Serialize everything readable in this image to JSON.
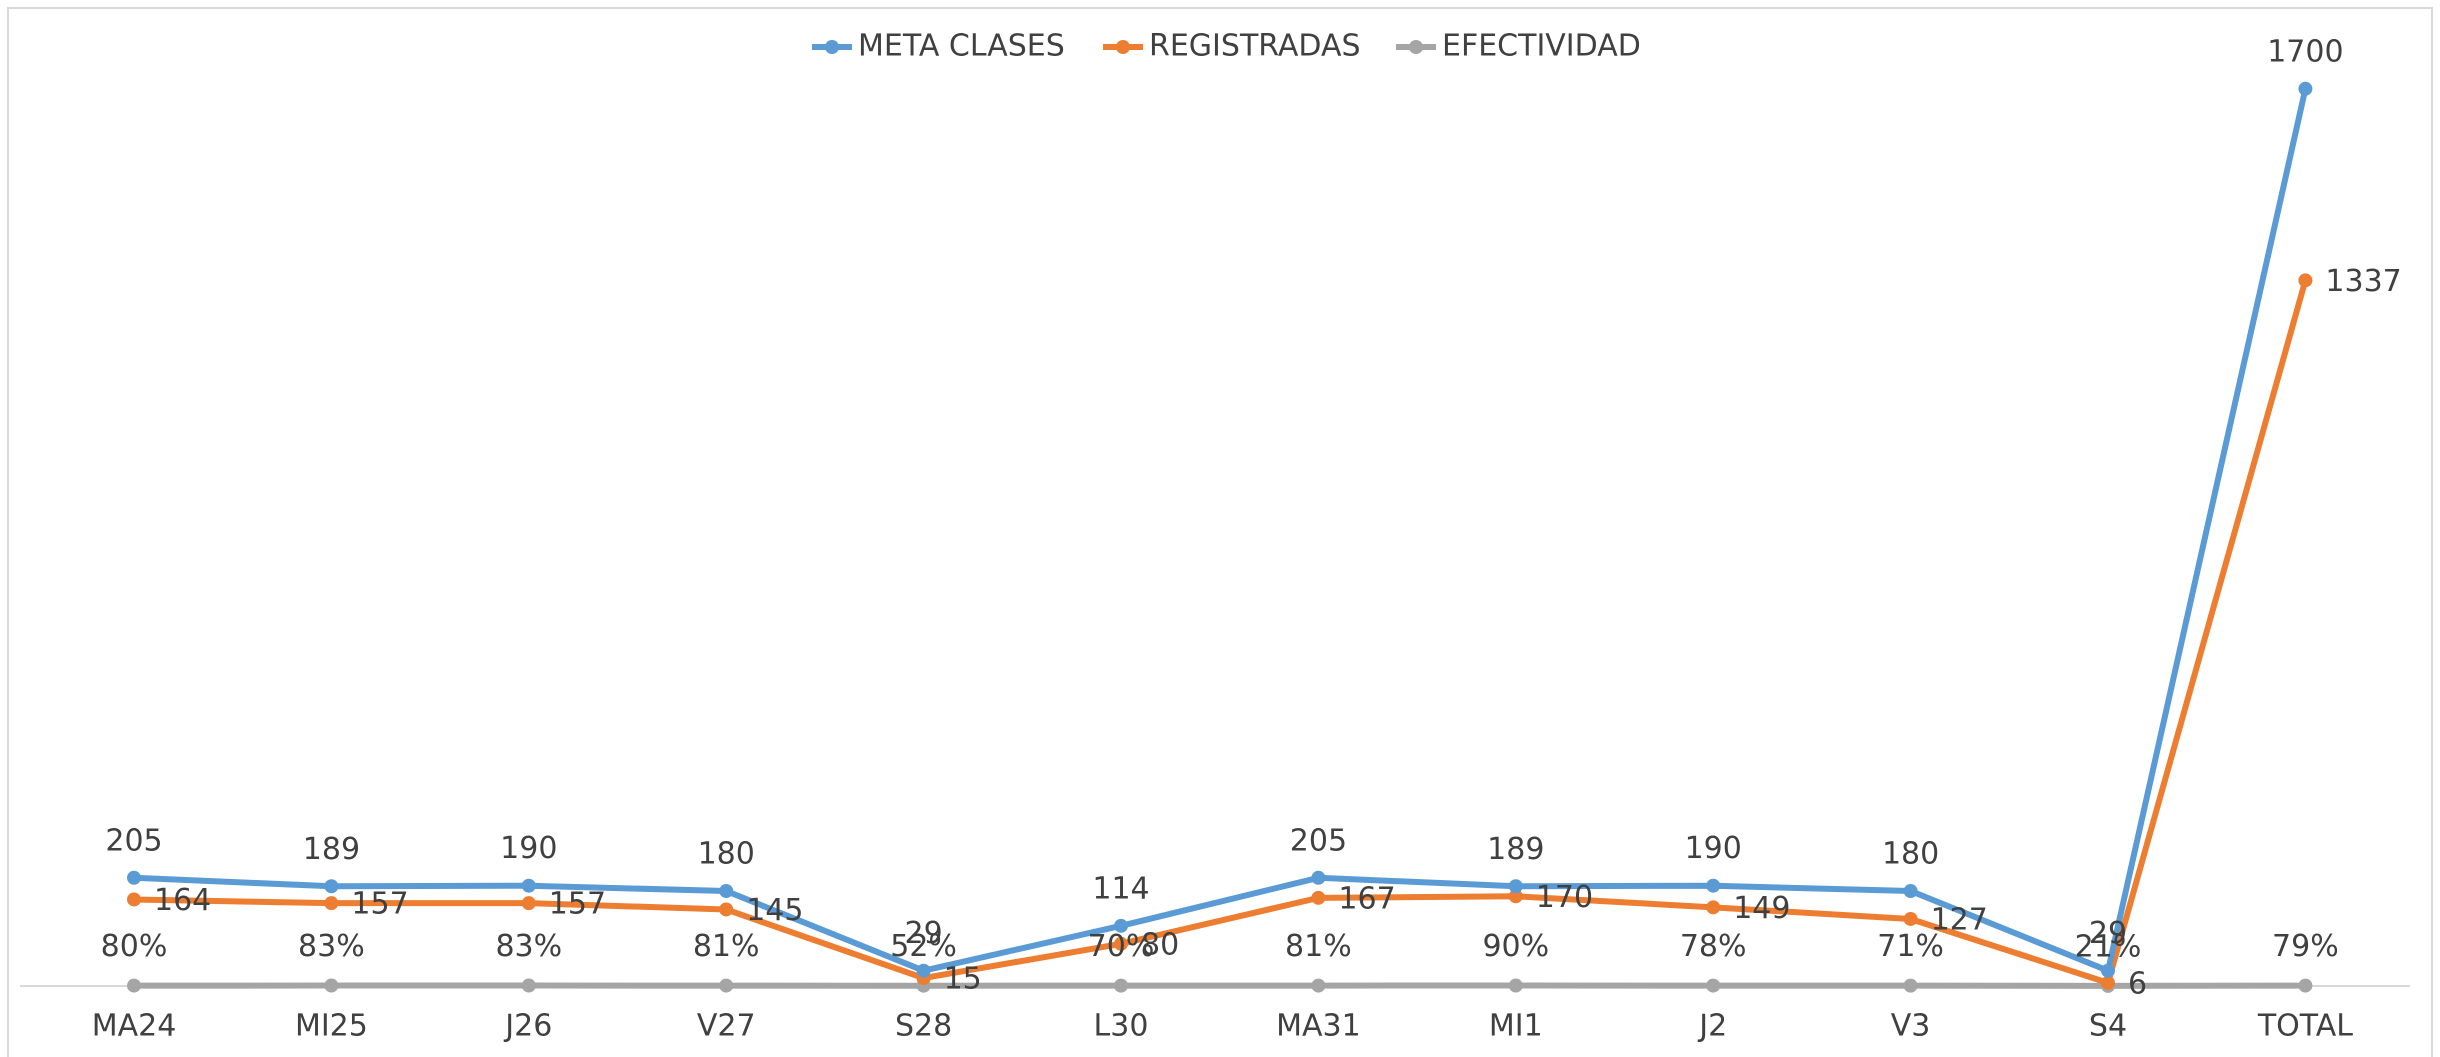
{
  "chart_data": {
    "type": "line",
    "categories": [
      "MA24",
      "MI25",
      "J26",
      "V27",
      "S28",
      "L30",
      "MA31",
      "MI1",
      "J2",
      "V3",
      "S4",
      "TOTAL"
    ],
    "ylim": [
      0,
      1800
    ],
    "legend": "top",
    "series": [
      {
        "name": "META CLASES",
        "color": "#5b9bd5",
        "values": [
          205,
          189,
          190,
          180,
          29,
          114,
          205,
          189,
          190,
          180,
          29,
          1700
        ]
      },
      {
        "name": "REGISTRADAS",
        "color": "#ed7d31",
        "values": [
          164,
          157,
          157,
          145,
          15,
          80,
          167,
          170,
          149,
          127,
          6,
          1337
        ]
      },
      {
        "name": "EFECTIVIDAD",
        "color": "#a5a5a5",
        "values": [
          0.8,
          0.83,
          0.83,
          0.81,
          0.52,
          0.7,
          0.81,
          0.9,
          0.78,
          0.71,
          0.21,
          0.79
        ],
        "value_labels": [
          "80%",
          "83%",
          "83%",
          "81%",
          "52%",
          "70%",
          "81%",
          "90%",
          "78%",
          "71%",
          "21%",
          "79%"
        ]
      }
    ]
  }
}
